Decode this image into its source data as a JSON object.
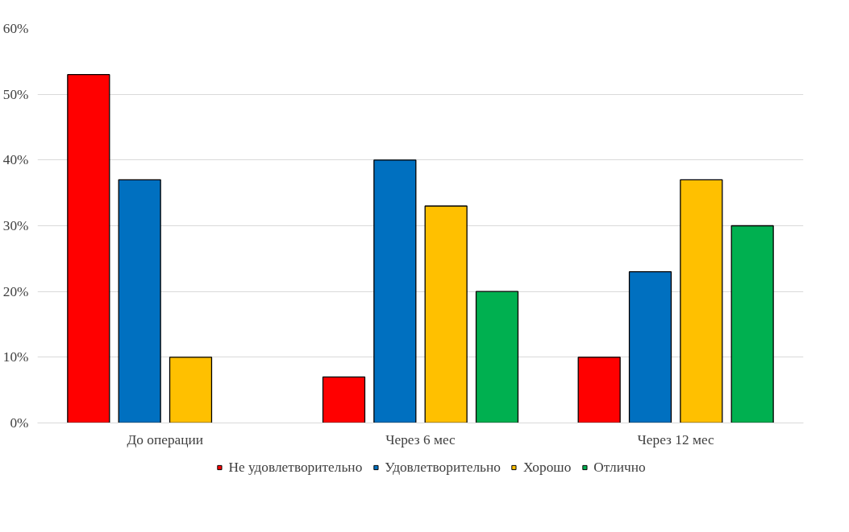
{
  "chart_data": {
    "type": "bar",
    "categories": [
      "До операции",
      "Через 6 мес",
      "Через 12 мес"
    ],
    "series": [
      {
        "name": "Не удовлетворительно",
        "color": "#ff0000",
        "values": [
          53,
          7,
          10
        ]
      },
      {
        "name": "Удовлетворительно",
        "color": "#0070c0",
        "values": [
          37,
          40,
          23
        ]
      },
      {
        "name": "Хорошо",
        "color": "#ffc000",
        "values": [
          10,
          33,
          37
        ]
      },
      {
        "name": "Отлично",
        "color": "#00b050",
        "values": [
          null,
          20,
          30
        ]
      }
    ],
    "ylim": [
      0,
      60
    ],
    "yticks": [
      {
        "value": 0,
        "label": "0%"
      },
      {
        "value": 10,
        "label": "10%"
      },
      {
        "value": 20,
        "label": "20%"
      },
      {
        "value": 30,
        "label": "30%"
      },
      {
        "value": 40,
        "label": "40%"
      },
      {
        "value": 50,
        "label": "50%"
      },
      {
        "value": 60,
        "label": "60%"
      }
    ],
    "grid": "y",
    "legend": "bottom"
  }
}
